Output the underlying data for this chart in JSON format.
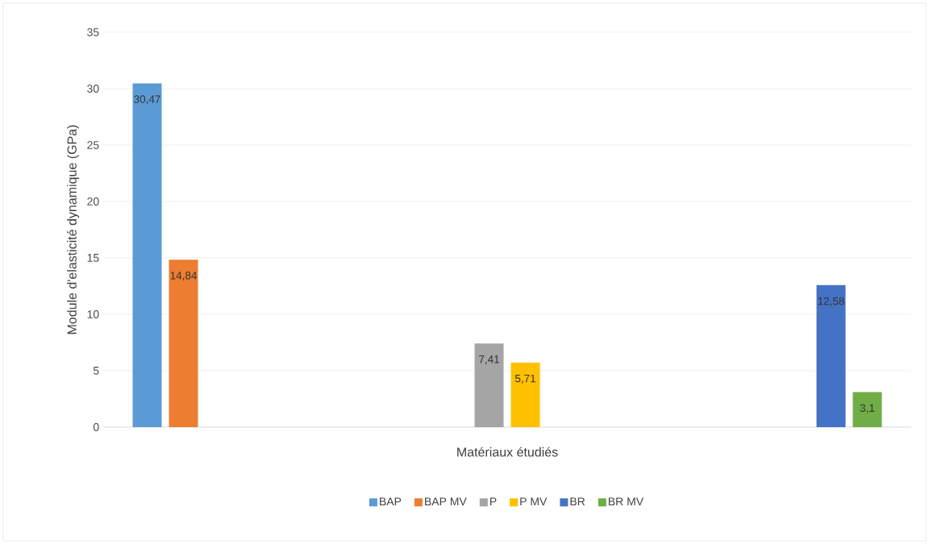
{
  "chart_data": {
    "type": "bar",
    "xlabel": "Matériaux étudiés",
    "ylabel": "Module d'elasticité dynamique (GPa)",
    "categories": [
      null,
      null,
      null
    ],
    "series": [
      {
        "name": "BAP",
        "color": "#5b9bd5",
        "values": [
          30.47,
          null,
          null
        ],
        "value_labels": [
          "30,47",
          null,
          null
        ]
      },
      {
        "name": "BAP MV",
        "color": "#ed7d31",
        "values": [
          14.84,
          null,
          null
        ],
        "value_labels": [
          "14,84",
          null,
          null
        ]
      },
      {
        "name": "P",
        "color": "#a5a5a5",
        "values": [
          null,
          7.41,
          null
        ],
        "value_labels": [
          null,
          "7,41",
          null
        ]
      },
      {
        "name": "P MV",
        "color": "#ffc000",
        "values": [
          null,
          5.71,
          null
        ],
        "value_labels": [
          null,
          "5,71",
          null
        ]
      },
      {
        "name": "BR",
        "color": "#4472c4",
        "values": [
          null,
          null,
          12.58
        ],
        "value_labels": [
          null,
          null,
          "12,58"
        ]
      },
      {
        "name": "BR MV",
        "color": "#70ad47",
        "values": [
          null,
          null,
          3.1
        ],
        "value_labels": [
          null,
          null,
          "3,1"
        ]
      }
    ],
    "ylim": [
      0,
      35
    ],
    "yticks": [
      0,
      5,
      10,
      15,
      20,
      25,
      30,
      35
    ],
    "grid": "y",
    "legend": "bottom"
  }
}
